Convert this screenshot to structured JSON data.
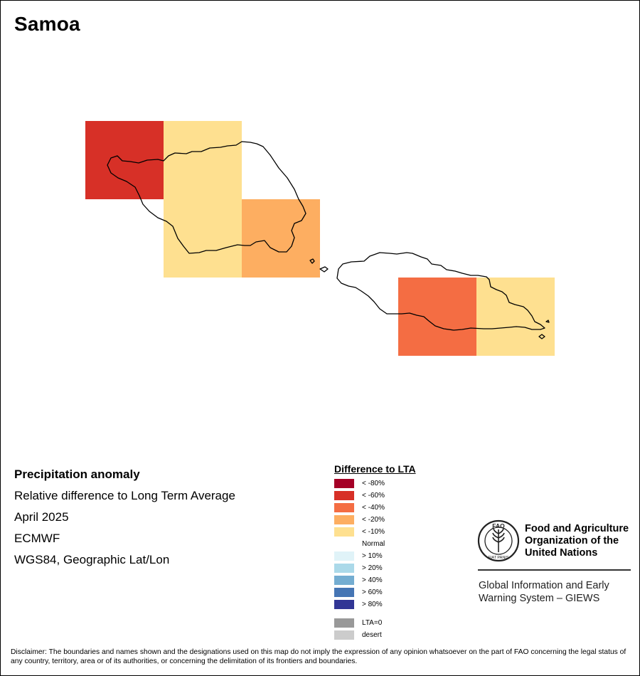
{
  "map": {
    "title": "Samoa",
    "info": {
      "heading": "Precipitation anomaly",
      "line1": "Relative difference to Long Term Average",
      "line2": "April 2025",
      "line3": "ECMWF",
      "line4": "WGS84, Geographic Lat/Lon"
    },
    "grid_cells": [
      {
        "class": "< -60%",
        "color": "#d73027"
      },
      {
        "class": "< -10%",
        "color": "#fee090"
      },
      {
        "class": "< -10%",
        "color": "#fee090"
      },
      {
        "class": "< -20%",
        "color": "#fdae61"
      },
      {
        "class": "< -40%",
        "color": "#f46d43"
      },
      {
        "class": "< -10%",
        "color": "#fee090"
      }
    ]
  },
  "legend": {
    "title": "Difference to LTA",
    "items": [
      {
        "label": "< -80%",
        "color": "#a50026"
      },
      {
        "label": "< -60%",
        "color": "#d73027"
      },
      {
        "label": "< -40%",
        "color": "#f46d43"
      },
      {
        "label": "< -20%",
        "color": "#fdae61"
      },
      {
        "label": "< -10%",
        "color": "#fee090"
      },
      {
        "label": "Normal",
        "color": "#ffffff"
      },
      {
        "label": "> 10%",
        "color": "#e0f3f8"
      },
      {
        "label": "> 20%",
        "color": "#abd9e9"
      },
      {
        "label": "> 40%",
        "color": "#74add1"
      },
      {
        "label": "> 60%",
        "color": "#4575b4"
      },
      {
        "label": "> 80%",
        "color": "#313695"
      }
    ],
    "extra": [
      {
        "label": "LTA=0",
        "color": "#999999"
      },
      {
        "label": "desert",
        "color": "#cccccc"
      }
    ]
  },
  "logo": {
    "org_line1": "Food and Agriculture",
    "org_line2": "Organization of the",
    "org_line3": "United Nations",
    "acronym": "FAO",
    "seal_text": "FIAT PANIS",
    "system_line1": "Global Information and Early",
    "system_line2": "Warning System – GIEWS"
  },
  "disclaimer": "Disclaimer: The boundaries and names shown and the designations used on this map do not imply the expression of any opinion whatsoever on the part of FAO concerning the legal status of any country, territory, area or of its authorities, or concerning the delimitation of its frontiers and boundaries."
}
